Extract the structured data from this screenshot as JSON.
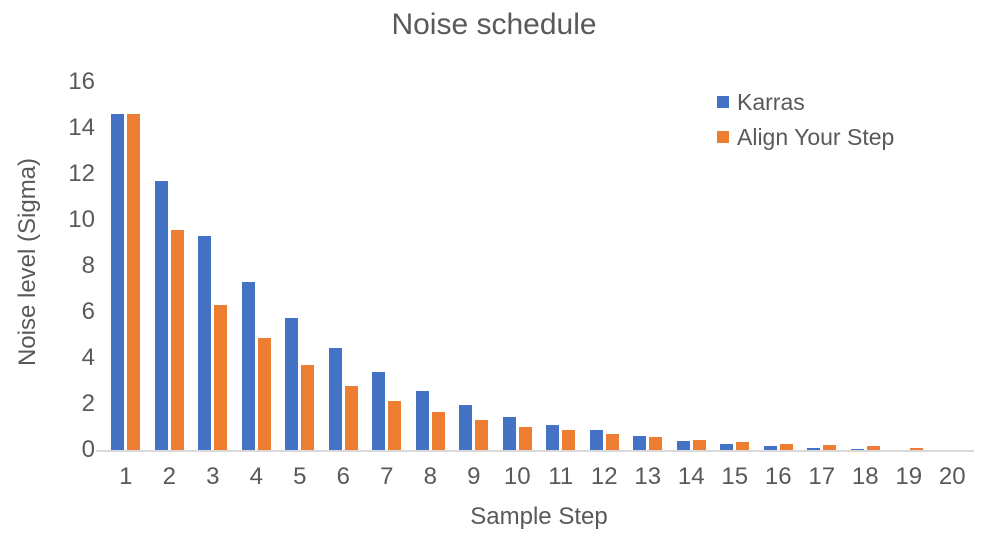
{
  "chart_data": {
    "type": "bar",
    "title": "Noise schedule",
    "xlabel": "Sample Step",
    "ylabel": "Noise level (Sigma)",
    "categories": [
      "1",
      "2",
      "3",
      "4",
      "5",
      "6",
      "7",
      "8",
      "9",
      "10",
      "11",
      "12",
      "13",
      "14",
      "15",
      "16",
      "17",
      "18",
      "19",
      "20"
    ],
    "series": [
      {
        "name": "Karras",
        "color": "#4472C4",
        "values": [
          14.6,
          11.7,
          9.3,
          7.3,
          5.75,
          4.45,
          3.4,
          2.55,
          1.95,
          1.45,
          1.1,
          0.85,
          0.6,
          0.38,
          0.27,
          0.17,
          0.1,
          0.03,
          0.02,
          0.01
        ]
      },
      {
        "name": "Align Your Step",
        "color": "#ED7D31",
        "values": [
          14.6,
          9.55,
          6.3,
          4.85,
          3.7,
          2.8,
          2.15,
          1.65,
          1.3,
          1.0,
          0.85,
          0.7,
          0.55,
          0.44,
          0.35,
          0.26,
          0.2,
          0.16,
          0.09,
          0.02
        ]
      }
    ],
    "ylim": [
      0,
      16
    ],
    "y_ticks": [
      0,
      2,
      4,
      6,
      8,
      10,
      12,
      14,
      16
    ],
    "grid": false,
    "legend_position": "top-right"
  },
  "colors": {
    "text": "#595959",
    "axis_line": "#D9D9D9",
    "background": "#FFFFFF"
  }
}
